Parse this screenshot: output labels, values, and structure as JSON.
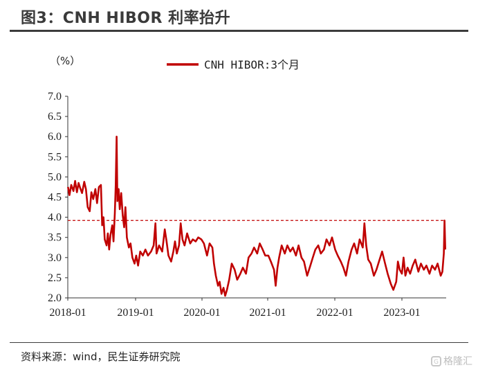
{
  "header": {
    "title": "图3：CNH HIBOR 利率抬升"
  },
  "footer": {
    "source": "资料来源：wind，民生证券研究院",
    "watermark": "格隆汇"
  },
  "colors": {
    "series": "#c00000",
    "reference": "#c00000",
    "text": "#222222"
  },
  "chart_data": {
    "type": "line",
    "title": "",
    "ylabel": "（%）",
    "xlabel": "",
    "ylim": [
      2.0,
      7.0
    ],
    "yticks": [
      "7.0",
      "6.5",
      "6.0",
      "5.5",
      "5.0",
      "4.5",
      "4.0",
      "3.5",
      "3.0",
      "2.5",
      "2.0"
    ],
    "xticks": [
      "2018-01",
      "2019-01",
      "2020-01",
      "2021-01",
      "2022-01",
      "2023-01"
    ],
    "legend": {
      "position": "top",
      "entries": [
        "CNH HIBOR:3个月"
      ]
    },
    "reference_line": {
      "y": 3.92,
      "style": "dashed"
    },
    "grid": false,
    "series": [
      {
        "name": "CNH HIBOR:3个月",
        "points": [
          [
            "2018-01-02",
            4.75
          ],
          [
            "2018-01-10",
            4.55
          ],
          [
            "2018-01-20",
            4.8
          ],
          [
            "2018-02-01",
            4.65
          ],
          [
            "2018-02-10",
            4.9
          ],
          [
            "2018-02-20",
            4.62
          ],
          [
            "2018-03-01",
            4.85
          ],
          [
            "2018-03-10",
            4.72
          ],
          [
            "2018-03-20",
            4.6
          ],
          [
            "2018-04-01",
            4.88
          ],
          [
            "2018-04-10",
            4.7
          ],
          [
            "2018-04-20",
            4.25
          ],
          [
            "2018-05-01",
            4.15
          ],
          [
            "2018-05-10",
            4.62
          ],
          [
            "2018-05-20",
            4.45
          ],
          [
            "2018-06-01",
            4.7
          ],
          [
            "2018-06-10",
            4.35
          ],
          [
            "2018-06-20",
            4.75
          ],
          [
            "2018-07-01",
            4.8
          ],
          [
            "2018-07-08",
            3.8
          ],
          [
            "2018-07-15",
            4.0
          ],
          [
            "2018-07-22",
            3.45
          ],
          [
            "2018-08-01",
            3.3
          ],
          [
            "2018-08-08",
            3.6
          ],
          [
            "2018-08-15",
            3.2
          ],
          [
            "2018-08-22",
            3.55
          ],
          [
            "2018-09-01",
            3.8
          ],
          [
            "2018-09-08",
            3.4
          ],
          [
            "2018-09-15",
            4.1
          ],
          [
            "2018-09-20",
            4.8
          ],
          [
            "2018-09-25",
            6.0
          ],
          [
            "2018-09-29",
            4.4
          ],
          [
            "2018-10-06",
            4.7
          ],
          [
            "2018-10-12",
            4.2
          ],
          [
            "2018-10-20",
            4.6
          ],
          [
            "2018-10-28",
            4.05
          ],
          [
            "2018-11-05",
            3.75
          ],
          [
            "2018-11-12",
            4.25
          ],
          [
            "2018-11-20",
            3.5
          ],
          [
            "2018-12-01",
            3.25
          ],
          [
            "2018-12-10",
            3.35
          ],
          [
            "2018-12-20",
            3.0
          ],
          [
            "2019-01-01",
            2.85
          ],
          [
            "2019-01-10",
            3.05
          ],
          [
            "2019-01-20",
            2.8
          ],
          [
            "2019-02-01",
            3.15
          ],
          [
            "2019-02-15",
            3.05
          ],
          [
            "2019-03-01",
            3.2
          ],
          [
            "2019-03-15",
            3.05
          ],
          [
            "2019-04-01",
            3.15
          ],
          [
            "2019-04-15",
            3.3
          ],
          [
            "2019-04-25",
            3.85
          ],
          [
            "2019-05-01",
            3.1
          ],
          [
            "2019-05-15",
            3.3
          ],
          [
            "2019-06-01",
            3.15
          ],
          [
            "2019-06-15",
            3.7
          ],
          [
            "2019-06-25",
            3.4
          ],
          [
            "2019-07-05",
            3.05
          ],
          [
            "2019-07-20",
            2.9
          ],
          [
            "2019-08-01",
            3.15
          ],
          [
            "2019-08-10",
            3.4
          ],
          [
            "2019-08-20",
            3.1
          ],
          [
            "2019-09-01",
            3.3
          ],
          [
            "2019-09-10",
            3.85
          ],
          [
            "2019-09-20",
            3.45
          ],
          [
            "2019-10-01",
            3.3
          ],
          [
            "2019-10-15",
            3.6
          ],
          [
            "2019-11-01",
            3.35
          ],
          [
            "2019-11-15",
            3.45
          ],
          [
            "2019-12-01",
            3.4
          ],
          [
            "2019-12-15",
            3.5
          ],
          [
            "2020-01-01",
            3.45
          ],
          [
            "2020-01-15",
            3.35
          ],
          [
            "2020-02-01",
            3.05
          ],
          [
            "2020-02-15",
            3.35
          ],
          [
            "2020-03-01",
            3.25
          ],
          [
            "2020-03-10",
            2.85
          ],
          [
            "2020-03-20",
            2.55
          ],
          [
            "2020-04-01",
            2.3
          ],
          [
            "2020-04-10",
            2.4
          ],
          [
            "2020-04-20",
            2.1
          ],
          [
            "2020-05-01",
            2.25
          ],
          [
            "2020-05-10",
            2.05
          ],
          [
            "2020-05-20",
            2.2
          ],
          [
            "2020-06-01",
            2.45
          ],
          [
            "2020-06-15",
            2.85
          ],
          [
            "2020-07-01",
            2.7
          ],
          [
            "2020-07-15",
            2.45
          ],
          [
            "2020-08-01",
            2.6
          ],
          [
            "2020-08-15",
            2.75
          ],
          [
            "2020-09-01",
            2.6
          ],
          [
            "2020-09-15",
            3.0
          ],
          [
            "2020-10-01",
            3.1
          ],
          [
            "2020-10-15",
            3.25
          ],
          [
            "2020-11-01",
            3.1
          ],
          [
            "2020-11-15",
            3.35
          ],
          [
            "2020-12-01",
            3.2
          ],
          [
            "2020-12-15",
            3.05
          ],
          [
            "2021-01-01",
            3.05
          ],
          [
            "2021-01-15",
            2.9
          ],
          [
            "2021-02-01",
            2.7
          ],
          [
            "2021-02-10",
            2.3
          ],
          [
            "2021-02-20",
            2.75
          ],
          [
            "2021-03-01",
            3.0
          ],
          [
            "2021-03-15",
            3.3
          ],
          [
            "2021-04-01",
            3.1
          ],
          [
            "2021-04-15",
            3.3
          ],
          [
            "2021-05-01",
            3.15
          ],
          [
            "2021-05-15",
            3.25
          ],
          [
            "2021-06-01",
            3.05
          ],
          [
            "2021-06-15",
            3.3
          ],
          [
            "2021-07-01",
            3.0
          ],
          [
            "2021-07-15",
            2.9
          ],
          [
            "2021-08-01",
            2.55
          ],
          [
            "2021-08-15",
            2.75
          ],
          [
            "2021-09-01",
            3.0
          ],
          [
            "2021-09-15",
            3.2
          ],
          [
            "2021-10-01",
            3.3
          ],
          [
            "2021-10-15",
            3.1
          ],
          [
            "2021-11-01",
            3.2
          ],
          [
            "2021-11-15",
            3.45
          ],
          [
            "2021-12-01",
            3.3
          ],
          [
            "2021-12-15",
            3.5
          ],
          [
            "2022-01-01",
            3.2
          ],
          [
            "2022-01-15",
            3.05
          ],
          [
            "2022-02-01",
            2.9
          ],
          [
            "2022-02-15",
            2.75
          ],
          [
            "2022-03-01",
            2.55
          ],
          [
            "2022-03-15",
            2.9
          ],
          [
            "2022-04-01",
            3.2
          ],
          [
            "2022-04-15",
            3.35
          ],
          [
            "2022-05-01",
            3.1
          ],
          [
            "2022-05-15",
            3.45
          ],
          [
            "2022-06-01",
            3.25
          ],
          [
            "2022-06-10",
            3.85
          ],
          [
            "2022-06-20",
            3.3
          ],
          [
            "2022-07-01",
            2.95
          ],
          [
            "2022-07-15",
            2.85
          ],
          [
            "2022-08-01",
            2.55
          ],
          [
            "2022-08-15",
            2.7
          ],
          [
            "2022-09-01",
            2.95
          ],
          [
            "2022-09-15",
            3.15
          ],
          [
            "2022-10-01",
            2.85
          ],
          [
            "2022-10-15",
            2.6
          ],
          [
            "2022-11-01",
            2.35
          ],
          [
            "2022-11-15",
            2.2
          ],
          [
            "2022-12-01",
            2.4
          ],
          [
            "2022-12-10",
            2.9
          ],
          [
            "2022-12-20",
            2.7
          ],
          [
            "2023-01-01",
            2.6
          ],
          [
            "2023-01-10",
            3.0
          ],
          [
            "2023-01-20",
            2.55
          ],
          [
            "2023-02-01",
            2.75
          ],
          [
            "2023-02-15",
            2.6
          ],
          [
            "2023-03-01",
            2.8
          ],
          [
            "2023-03-15",
            2.95
          ],
          [
            "2023-04-01",
            2.65
          ],
          [
            "2023-04-15",
            2.85
          ],
          [
            "2023-05-01",
            2.7
          ],
          [
            "2023-05-15",
            2.8
          ],
          [
            "2023-06-01",
            2.6
          ],
          [
            "2023-06-15",
            2.8
          ],
          [
            "2023-07-01",
            2.7
          ],
          [
            "2023-07-15",
            2.85
          ],
          [
            "2023-08-01",
            2.55
          ],
          [
            "2023-08-10",
            2.65
          ],
          [
            "2023-08-18",
            3.1
          ],
          [
            "2023-08-22",
            3.92
          ],
          [
            "2023-08-26",
            3.2
          ]
        ]
      }
    ]
  }
}
